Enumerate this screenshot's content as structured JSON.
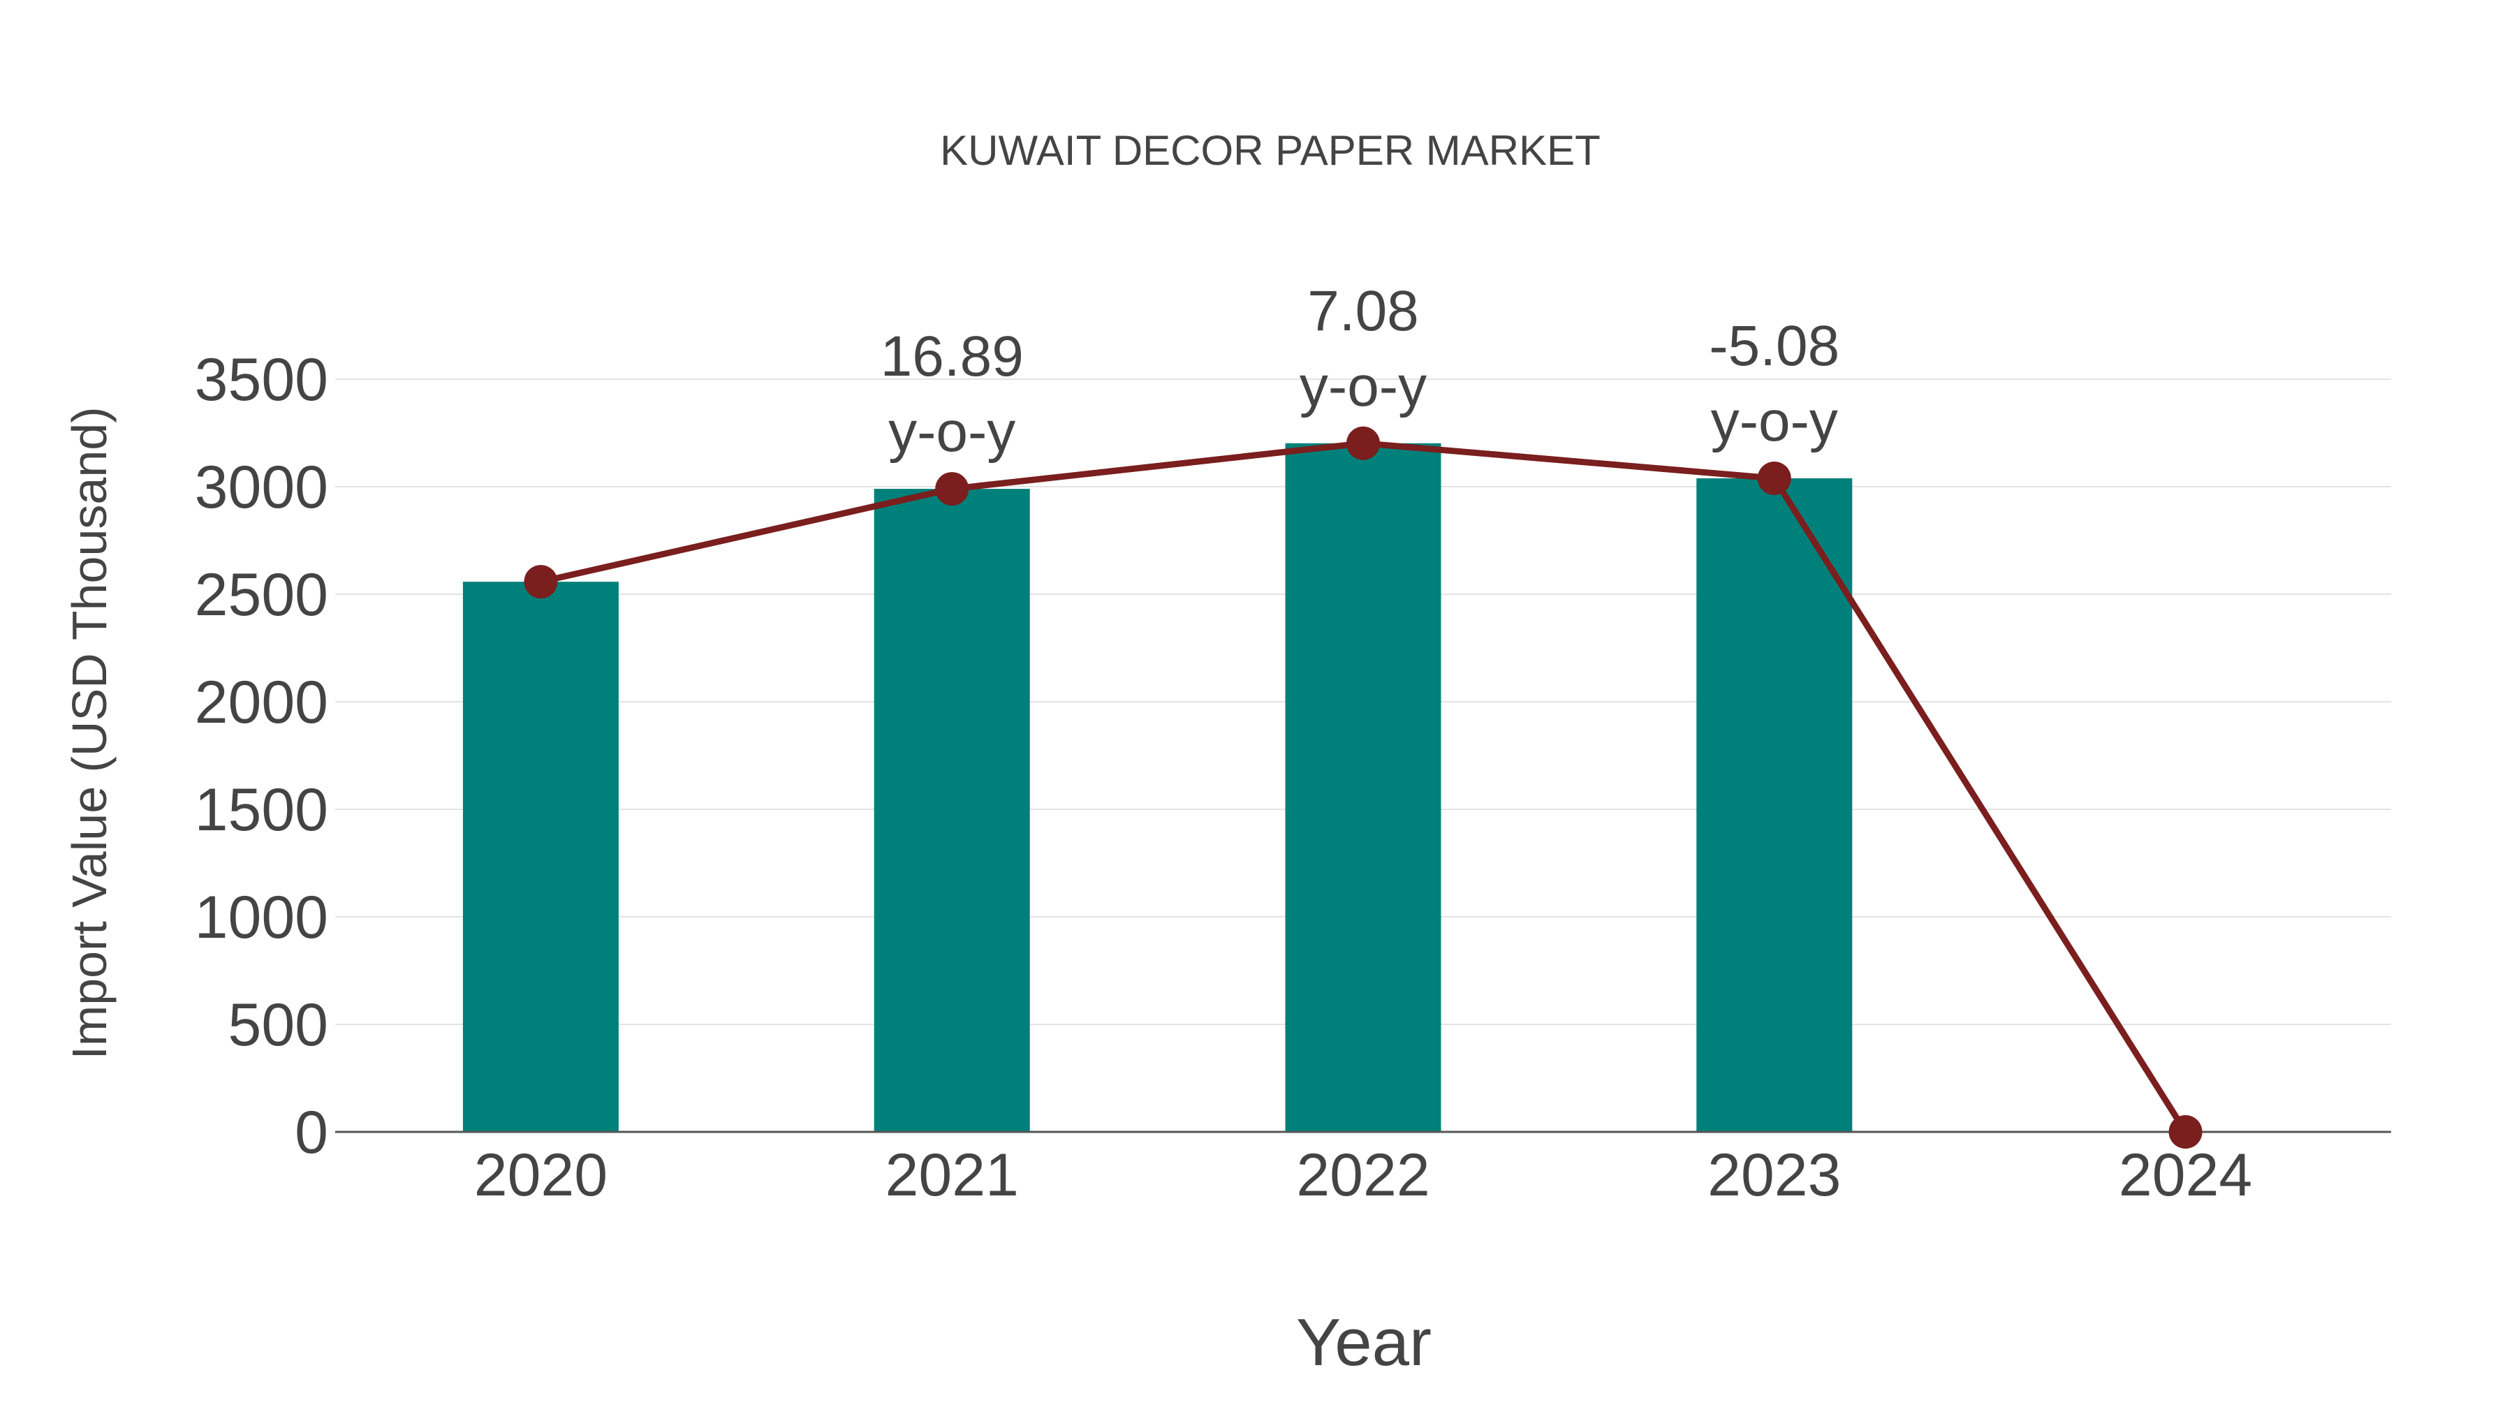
{
  "chart_data": {
    "type": "bar",
    "title": "KUWAIT DECOR PAPER MARKET",
    "xlabel": "Year",
    "ylabel": "Import Value (USD Thousand)",
    "categories": [
      "2020",
      "2021",
      "2022",
      "2023",
      "2024"
    ],
    "series": [
      {
        "name": "Import Value",
        "type": "bar",
        "values": [
          2558,
          2990,
          3202,
          3039,
          0
        ],
        "color": "#00807A"
      },
      {
        "name": "Trend",
        "type": "line",
        "values": [
          2558,
          2990,
          3202,
          3039,
          0
        ],
        "color": "#7A1E1E"
      }
    ],
    "annotations": [
      {
        "category": "2021",
        "value": "16.89",
        "suffix": "y-o-y"
      },
      {
        "category": "2022",
        "value": "7.08",
        "suffix": "y-o-y"
      },
      {
        "category": "2023",
        "value": "-5.08",
        "suffix": "y-o-y"
      }
    ],
    "yticks": [
      0,
      500,
      1000,
      1500,
      2000,
      2500,
      3000,
      3500
    ],
    "ylim": [
      0,
      3500
    ],
    "grid": true
  }
}
